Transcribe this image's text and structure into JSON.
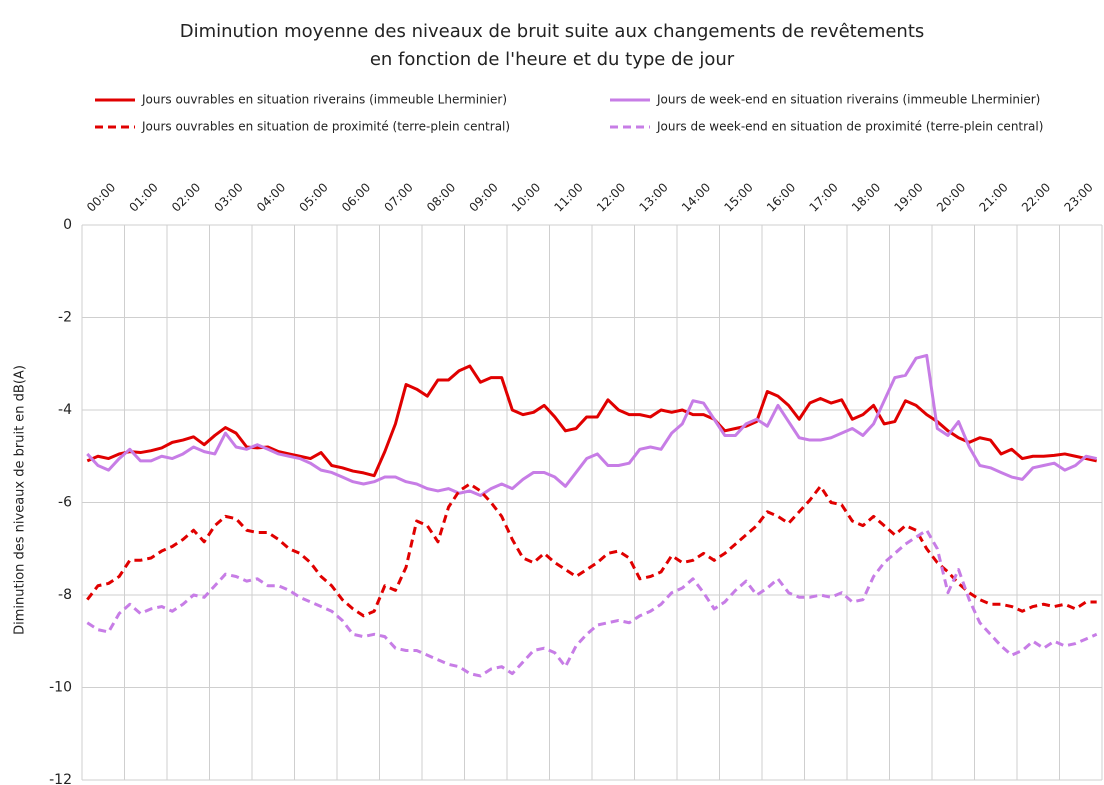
{
  "chart_data": {
    "type": "line",
    "title": [
      "Diminution moyenne des niveaux de bruit suite aux changements de revêtements",
      "en fonction de l'heure et du type de jour"
    ],
    "y_label": "Diminution des niveaux de bruit en dB(A)",
    "legend": "top",
    "grid": true,
    "ylim": [
      -12,
      0
    ],
    "yticks": [
      0,
      -2,
      -4,
      -6,
      -8,
      -10,
      -12
    ],
    "categories": [
      "00:00",
      null,
      null,
      null,
      "01:00",
      null,
      null,
      null,
      "02:00",
      null,
      null,
      null,
      "03:00",
      null,
      null,
      null,
      "04:00",
      null,
      null,
      null,
      "05:00",
      null,
      null,
      null,
      "06:00",
      null,
      null,
      null,
      "07:00",
      null,
      null,
      null,
      "08:00",
      null,
      null,
      null,
      "09:00",
      null,
      null,
      null,
      "10:00",
      null,
      null,
      null,
      "11:00",
      null,
      null,
      null,
      "12:00",
      null,
      null,
      null,
      "13:00",
      null,
      null,
      null,
      "14:00",
      null,
      null,
      null,
      "15:00",
      null,
      null,
      null,
      "16:00",
      null,
      null,
      null,
      "17:00",
      null,
      null,
      null,
      "18:00",
      null,
      null,
      null,
      "19:00",
      null,
      null,
      null,
      "20:00",
      null,
      null,
      null,
      "21:00",
      null,
      null,
      null,
      "22:00",
      null,
      null,
      null,
      "23:00",
      null,
      null,
      null
    ],
    "series": [
      {
        "name": "Jours ouvrables en situation riverains (immeuble Lherminier)",
        "color": "#e00000",
        "dashed": false,
        "values": [
          -5.1,
          -5.0,
          -5.05,
          -4.95,
          -4.9,
          -4.92,
          -4.88,
          -4.82,
          -4.7,
          -4.65,
          -4.58,
          -4.75,
          -4.55,
          -4.38,
          -4.5,
          -4.8,
          -4.82,
          -4.8,
          -4.9,
          -4.95,
          -5.0,
          -5.05,
          -4.92,
          -5.2,
          -5.25,
          -5.32,
          -5.36,
          -5.42,
          -4.9,
          -4.3,
          -3.45,
          -3.55,
          -3.7,
          -3.35,
          -3.35,
          -3.15,
          -3.05,
          -3.4,
          -3.3,
          -3.3,
          -4.0,
          -4.1,
          -4.05,
          -3.9,
          -4.15,
          -4.45,
          -4.4,
          -4.15,
          -4.15,
          -3.78,
          -4.0,
          -4.1,
          -4.1,
          -4.15,
          -4.0,
          -4.05,
          -4.0,
          -4.1,
          -4.1,
          -4.2,
          -4.45,
          -4.4,
          -4.35,
          -4.25,
          -3.6,
          -3.7,
          -3.9,
          -4.2,
          -3.85,
          -3.75,
          -3.85,
          -3.78,
          -4.2,
          -4.1,
          -3.9,
          -4.3,
          -4.25,
          -3.8,
          -3.9,
          -4.1,
          -4.25,
          -4.45,
          -4.6,
          -4.7,
          -4.6,
          -4.65,
          -4.95,
          -4.85,
          -5.05,
          -5.0,
          -5.0,
          -4.98,
          -4.95,
          -5.0,
          -5.05,
          -5.1
        ]
      },
      {
        "name": "Jours de week-end en situation riverains (immeuble Lherminier)",
        "color": "#c77de6",
        "dashed": false,
        "values": [
          -4.95,
          -5.2,
          -5.3,
          -5.05,
          -4.85,
          -5.1,
          -5.1,
          -5.0,
          -5.05,
          -4.95,
          -4.8,
          -4.9,
          -4.95,
          -4.5,
          -4.8,
          -4.85,
          -4.75,
          -4.85,
          -4.95,
          -5.0,
          -5.05,
          -5.15,
          -5.3,
          -5.35,
          -5.45,
          -5.55,
          -5.6,
          -5.55,
          -5.45,
          -5.45,
          -5.55,
          -5.6,
          -5.7,
          -5.75,
          -5.7,
          -5.8,
          -5.75,
          -5.85,
          -5.7,
          -5.6,
          -5.7,
          -5.5,
          -5.35,
          -5.35,
          -5.45,
          -5.65,
          -5.35,
          -5.05,
          -4.95,
          -5.2,
          -5.2,
          -5.15,
          -4.85,
          -4.8,
          -4.85,
          -4.5,
          -4.3,
          -3.8,
          -3.85,
          -4.2,
          -4.55,
          -4.55,
          -4.3,
          -4.2,
          -4.35,
          -3.9,
          -4.25,
          -4.6,
          -4.65,
          -4.65,
          -4.6,
          -4.5,
          -4.4,
          -4.55,
          -4.3,
          -3.8,
          -3.3,
          -3.25,
          -2.88,
          -2.82,
          -4.4,
          -4.55,
          -4.25,
          -4.8,
          -5.2,
          -5.25,
          -5.35,
          -5.45,
          -5.5,
          -5.25,
          -5.2,
          -5.15,
          -5.3,
          -5.2,
          -5.0,
          -5.05
        ]
      },
      {
        "name": "Jours ouvrables en situation de proximité (terre-plein central)",
        "color": "#e00000",
        "dashed": true,
        "values": [
          -8.1,
          -7.8,
          -7.75,
          -7.6,
          -7.25,
          -7.25,
          -7.2,
          -7.05,
          -6.95,
          -6.8,
          -6.6,
          -6.85,
          -6.5,
          -6.3,
          -6.35,
          -6.6,
          -6.65,
          -6.65,
          -6.8,
          -7.0,
          -7.1,
          -7.3,
          -7.6,
          -7.8,
          -8.1,
          -8.3,
          -8.45,
          -8.35,
          -7.8,
          -7.9,
          -7.4,
          -6.4,
          -6.5,
          -6.85,
          -6.1,
          -5.75,
          -5.6,
          -5.75,
          -6.0,
          -6.3,
          -6.8,
          -7.2,
          -7.3,
          -7.1,
          -7.3,
          -7.45,
          -7.6,
          -7.45,
          -7.3,
          -7.1,
          -7.05,
          -7.2,
          -7.65,
          -7.6,
          -7.5,
          -7.15,
          -7.3,
          -7.25,
          -7.1,
          -7.25,
          -7.1,
          -6.9,
          -6.7,
          -6.5,
          -6.2,
          -6.3,
          -6.45,
          -6.2,
          -5.95,
          -5.65,
          -6.0,
          -6.05,
          -6.4,
          -6.5,
          -6.3,
          -6.5,
          -6.7,
          -6.5,
          -6.6,
          -7.0,
          -7.3,
          -7.5,
          -7.75,
          -7.95,
          -8.1,
          -8.2,
          -8.2,
          -8.25,
          -8.35,
          -8.25,
          -8.2,
          -8.25,
          -8.2,
          -8.3,
          -8.15,
          -8.15
        ]
      },
      {
        "name": "Jours de week-end en situation de proximité (terre-plein central)",
        "color": "#c77de6",
        "dashed": true,
        "values": [
          -8.6,
          -8.75,
          -8.8,
          -8.4,
          -8.2,
          -8.4,
          -8.3,
          -8.25,
          -8.35,
          -8.2,
          -8.0,
          -8.05,
          -7.8,
          -7.55,
          -7.6,
          -7.7,
          -7.65,
          -7.8,
          -7.8,
          -7.9,
          -8.05,
          -8.15,
          -8.25,
          -8.35,
          -8.55,
          -8.85,
          -8.9,
          -8.85,
          -8.9,
          -9.15,
          -9.2,
          -9.2,
          -9.3,
          -9.4,
          -9.5,
          -9.55,
          -9.7,
          -9.75,
          -9.6,
          -9.55,
          -9.7,
          -9.45,
          -9.2,
          -9.15,
          -9.25,
          -9.55,
          -9.1,
          -8.85,
          -8.65,
          -8.6,
          -8.55,
          -8.6,
          -8.45,
          -8.35,
          -8.2,
          -7.95,
          -7.85,
          -7.65,
          -7.95,
          -8.3,
          -8.15,
          -7.9,
          -7.7,
          -8.0,
          -7.85,
          -7.65,
          -7.95,
          -8.05,
          -8.05,
          -8.0,
          -8.05,
          -7.95,
          -8.15,
          -8.1,
          -7.6,
          -7.3,
          -7.1,
          -6.9,
          -6.75,
          -6.6,
          -7.0,
          -7.95,
          -7.45,
          -8.1,
          -8.6,
          -8.85,
          -9.1,
          -9.3,
          -9.2,
          -9.0,
          -9.15,
          -9.0,
          -9.1,
          -9.05,
          -8.95,
          -8.85
        ]
      }
    ]
  }
}
